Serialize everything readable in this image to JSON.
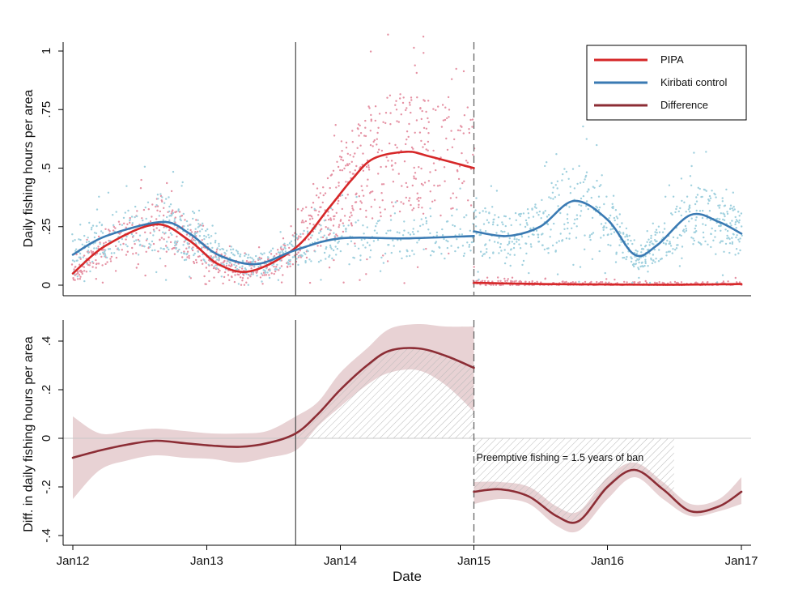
{
  "chart_data": [
    {
      "type": "scatter",
      "panel": "top",
      "ylabel": "Daily fishing hours per area",
      "ylim": [
        -0.04,
        1.05
      ],
      "yticks": [
        "0",
        ".25",
        ".5",
        ".75",
        "1"
      ],
      "ytick_values": [
        0,
        0.25,
        0.5,
        0.75,
        1
      ],
      "xlim": [
        "2011-12-20",
        "2017-01-25"
      ],
      "legend": {
        "position": "top-right",
        "entries": [
          {
            "label": "PIPA",
            "color": "#d62728"
          },
          {
            "label": "Kiribati control",
            "color": "#3a7ab3"
          },
          {
            "label": "Difference",
            "color": "#8c2d35"
          }
        ]
      },
      "vertical_lines": [
        {
          "date": "2013-09-01",
          "style": "solid"
        },
        {
          "date": "2015-01-01",
          "style": "dashed"
        }
      ],
      "series": [
        {
          "name": "PIPA",
          "kind": "smoothed line",
          "color": "#d62728",
          "x": [
            "2012-01-01",
            "2012-04-01",
            "2012-08-15",
            "2012-11-15",
            "2013-02-01",
            "2013-05-01",
            "2013-09-01",
            "2013-12-01",
            "2014-02-01",
            "2014-04-01",
            "2014-07-01",
            "2014-09-01",
            "2015-01-01"
          ],
          "values": [
            0.05,
            0.17,
            0.26,
            0.19,
            0.09,
            0.06,
            0.16,
            0.33,
            0.45,
            0.54,
            0.57,
            0.55,
            0.5
          ]
        },
        {
          "name": "PIPA",
          "kind": "smoothed line",
          "color": "#d62728",
          "x": [
            "2015-01-01",
            "2015-07-01",
            "2016-01-01",
            "2016-07-01",
            "2017-01-01"
          ],
          "values": [
            0.01,
            0.005,
            0.003,
            0.002,
            0.005
          ]
        },
        {
          "name": "Kiribati control",
          "kind": "smoothed line",
          "color": "#3a7ab3",
          "x": [
            "2012-01-01",
            "2012-04-01",
            "2012-09-01",
            "2012-11-15",
            "2013-02-01",
            "2013-05-15",
            "2013-09-01",
            "2014-01-01",
            "2014-07-01",
            "2015-01-01"
          ],
          "values": [
            0.13,
            0.21,
            0.27,
            0.22,
            0.13,
            0.09,
            0.15,
            0.2,
            0.2,
            0.21
          ]
        },
        {
          "name": "Kiribati control",
          "kind": "smoothed line",
          "color": "#3a7ab3",
          "x": [
            "2015-01-01",
            "2015-04-01",
            "2015-07-01",
            "2015-10-01",
            "2016-01-01",
            "2016-03-15",
            "2016-05-15",
            "2016-08-15",
            "2016-11-01",
            "2017-01-01"
          ],
          "values": [
            0.23,
            0.21,
            0.25,
            0.36,
            0.28,
            0.13,
            0.17,
            0.3,
            0.27,
            0.22
          ]
        }
      ]
    },
    {
      "type": "line",
      "panel": "bottom",
      "ylabel": "Diff. in daily fishing hours per area",
      "xlabel": "Date",
      "ylim": [
        -0.45,
        0.5
      ],
      "yticks": [
        "-.4",
        "-.2",
        "0",
        ".2",
        ".4"
      ],
      "ytick_values": [
        -0.4,
        -0.2,
        0,
        0.2,
        0.4
      ],
      "xlim": [
        "2011-12-20",
        "2017-01-25"
      ],
      "xticks": [
        "Jan12",
        "Jan13",
        "Jan14",
        "Jan15",
        "Jan16",
        "Jan17"
      ],
      "xtick_values": [
        "2012-01-01",
        "2013-01-01",
        "2014-01-01",
        "2015-01-01",
        "2016-01-01",
        "2017-01-01"
      ],
      "annotations": [
        {
          "text": "Preemptive fishing = 1.5 years of ban",
          "x": "2015-01-01",
          "y": -0.08
        }
      ],
      "shaded_regions": [
        {
          "kind": "hatched area between difference curve and 0",
          "x_start": "2013-09-01",
          "x_end": "2015-01-01"
        },
        {
          "kind": "hatched area equal in size to the preemptive fishing",
          "x_start": "2015-01-01",
          "x_end": "2016-07-01"
        }
      ],
      "series": [
        {
          "name": "Difference",
          "color": "#8c2d35",
          "ci_color": "#e8d2d4",
          "x": [
            "2012-01-01",
            "2012-03-15",
            "2012-06-01",
            "2012-08-15",
            "2012-11-01",
            "2013-01-15",
            "2013-04-01",
            "2013-06-15",
            "2013-09-01",
            "2013-11-01",
            "2014-01-01",
            "2014-03-15",
            "2014-05-15",
            "2014-08-01",
            "2014-10-15",
            "2015-01-01"
          ],
          "values": [
            -0.08,
            -0.05,
            -0.025,
            -0.01,
            -0.02,
            -0.03,
            -0.035,
            -0.02,
            0.02,
            0.1,
            0.2,
            0.3,
            0.36,
            0.37,
            0.34,
            0.29
          ],
          "ci_lower": [
            -0.25,
            -0.13,
            -0.09,
            -0.07,
            -0.08,
            -0.085,
            -0.1,
            -0.08,
            -0.05,
            0.05,
            0.13,
            0.22,
            0.27,
            0.28,
            0.22,
            0.11
          ],
          "ci_upper": [
            0.09,
            0.02,
            0.03,
            0.04,
            0.03,
            0.02,
            0.02,
            0.03,
            0.09,
            0.15,
            0.27,
            0.37,
            0.45,
            0.47,
            0.46,
            0.46
          ]
        },
        {
          "name": "Difference",
          "color": "#8c2d35",
          "ci_color": "#e8d2d4",
          "x": [
            "2015-01-01",
            "2015-03-15",
            "2015-06-01",
            "2015-08-15",
            "2015-10-15",
            "2016-01-01",
            "2016-03-15",
            "2016-06-01",
            "2016-08-15",
            "2016-11-01",
            "2017-01-01"
          ],
          "values": [
            -0.22,
            -0.21,
            -0.24,
            -0.32,
            -0.34,
            -0.2,
            -0.13,
            -0.21,
            -0.3,
            -0.28,
            -0.22
          ],
          "ci_lower": [
            -0.27,
            -0.25,
            -0.27,
            -0.36,
            -0.38,
            -0.25,
            -0.16,
            -0.25,
            -0.32,
            -0.3,
            -0.27
          ],
          "ci_upper": [
            -0.18,
            -0.18,
            -0.2,
            -0.28,
            -0.3,
            -0.16,
            -0.1,
            -0.18,
            -0.27,
            -0.25,
            -0.16
          ]
        }
      ]
    }
  ]
}
